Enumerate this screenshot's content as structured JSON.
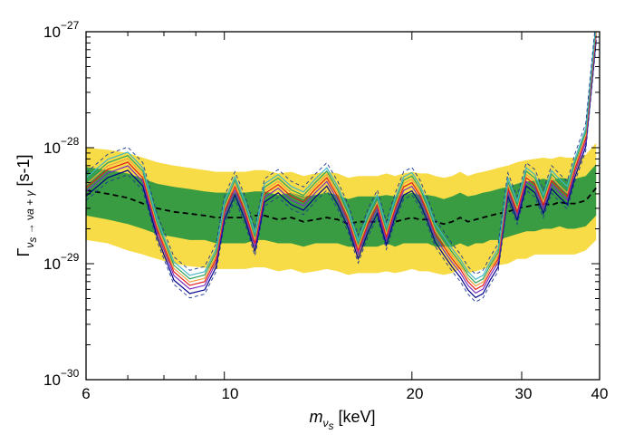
{
  "chart_data": {
    "type": "line",
    "xscale": "log",
    "yscale": "log",
    "xlim": [
      6,
      40
    ],
    "ylim": [
      1e-30,
      1e-27
    ],
    "grid": false,
    "legend": "none",
    "xlabel": {
      "main": "m",
      "sub": "ν",
      "subsub": "s",
      "unit": " [keV]"
    },
    "ylabel": {
      "main": "Γ",
      "sub": "ν",
      "subsub": "s",
      "mid": " → ν",
      "sub2": "a",
      "tail": " + γ",
      "unit": " [s-1]"
    },
    "x_ticks": [
      {
        "value": 6,
        "label": "6"
      },
      {
        "value": 10,
        "label": "10"
      },
      {
        "value": 20,
        "label": "20"
      },
      {
        "value": 30,
        "label": "30"
      },
      {
        "value": 40,
        "label": "40"
      }
    ],
    "y_ticks": [
      {
        "value": 1e-30,
        "base": "10",
        "exp": "−30"
      },
      {
        "value": 1e-29,
        "base": "10",
        "exp": "−29"
      },
      {
        "value": 1e-28,
        "base": "10",
        "exp": "−28"
      },
      {
        "value": 1e-27,
        "base": "10",
        "exp": "−27"
      }
    ],
    "x": [
      6.0,
      6.5,
      7.0,
      7.4,
      7.8,
      8.3,
      8.8,
      9.3,
      9.7,
      10.0,
      10.4,
      10.8,
      11.2,
      11.6,
      12.2,
      12.8,
      13.4,
      14.0,
      14.6,
      15.2,
      15.8,
      16.4,
      17.0,
      17.6,
      18.2,
      18.8,
      19.4,
      20.0,
      20.6,
      21.2,
      21.8,
      22.5,
      23.2,
      23.9,
      24.6,
      25.3,
      26.0,
      26.7,
      27.5,
      28.5,
      29.5,
      30.5,
      31.5,
      32.5,
      33.5,
      34.5,
      35.5,
      36.5,
      38.0,
      39.5
    ],
    "expected_median": [
      4.3e-29,
      4e-29,
      3.7e-29,
      3.3e-29,
      3e-29,
      2.8e-29,
      2.7e-29,
      2.6e-29,
      2.5e-29,
      2.5e-29,
      2.5e-29,
      2.5e-29,
      2.6e-29,
      2.6e-29,
      2.4e-29,
      2.5e-29,
      2.3e-29,
      2.4e-29,
      2.5e-29,
      2.4e-29,
      2.2e-29,
      2.3e-29,
      2.3e-29,
      2.3e-29,
      2.4e-29,
      2.3e-29,
      2.4e-29,
      2.5e-29,
      2.4e-29,
      2.4e-29,
      2.3e-29,
      2.2e-29,
      2.3e-29,
      2.5e-29,
      2.3e-29,
      2.4e-29,
      2.5e-29,
      2.6e-29,
      2.7e-29,
      2.8e-29,
      3e-29,
      3.1e-29,
      3.2e-29,
      3.3e-29,
      3.2e-29,
      3.4e-29,
      3.3e-29,
      3.3e-29,
      3.5e-29,
      4.5e-29
    ],
    "band_1sigma_low": [
      2.6e-29,
      2.4e-29,
      2.2e-29,
      2e-29,
      1.8e-29,
      1.7e-29,
      1.6e-29,
      1.6e-29,
      1.5e-29,
      1.5e-29,
      1.5e-29,
      1.5e-29,
      1.6e-29,
      1.6e-29,
      1.5e-29,
      1.5e-29,
      1.4e-29,
      1.5e-29,
      1.5e-29,
      1.5e-29,
      1.4e-29,
      1.4e-29,
      1.4e-29,
      1.4e-29,
      1.5e-29,
      1.4e-29,
      1.5e-29,
      1.5e-29,
      1.5e-29,
      1.5e-29,
      1.4e-29,
      1.4e-29,
      1.4e-29,
      1.5e-29,
      1.4e-29,
      1.5e-29,
      1.5e-29,
      1.6e-29,
      1.6e-29,
      1.7e-29,
      1.8e-29,
      1.9e-29,
      1.9e-29,
      2e-29,
      2e-29,
      2.1e-29,
      2e-29,
      2e-29,
      2.1e-29,
      2.6e-29
    ],
    "band_1sigma_high": [
      6.8e-29,
      6.4e-29,
      6e-29,
      5.4e-29,
      4.9e-29,
      4.6e-29,
      4.4e-29,
      4.2e-29,
      4.1e-29,
      4.1e-29,
      4.1e-29,
      4.1e-29,
      4.2e-29,
      4.2e-29,
      3.9e-29,
      4.1e-29,
      3.8e-29,
      3.9e-29,
      4.1e-29,
      3.9e-29,
      3.6e-29,
      3.8e-29,
      3.8e-29,
      3.8e-29,
      3.9e-29,
      3.8e-29,
      3.9e-29,
      4.1e-29,
      3.9e-29,
      3.9e-29,
      3.8e-29,
      3.6e-29,
      3.8e-29,
      4.1e-29,
      3.8e-29,
      3.9e-29,
      4.1e-29,
      4.2e-29,
      4.4e-29,
      4.6e-29,
      4.9e-29,
      5.1e-29,
      5.2e-29,
      5.4e-29,
      5.2e-29,
      5.5e-29,
      5.4e-29,
      5.4e-29,
      5.7e-29,
      7.2e-29
    ],
    "band_2sigma_low": [
      1.6e-29,
      1.5e-29,
      1.3e-29,
      1.2e-29,
      1.1e-29,
      1e-29,
      9.5e-30,
      9.2e-30,
      9e-30,
      9e-30,
      9e-30,
      9e-30,
      9.3e-30,
      9.3e-30,
      8.6e-30,
      9e-30,
      8.3e-30,
      8.6e-30,
      9e-30,
      8.6e-30,
      8e-30,
      8.3e-30,
      8.3e-30,
      8.3e-30,
      8.6e-30,
      8.3e-30,
      8.6e-30,
      9e-30,
      8.6e-30,
      8.6e-30,
      8.3e-30,
      8e-30,
      8.3e-30,
      9e-30,
      8.3e-30,
      8.6e-30,
      9e-30,
      9.3e-30,
      9.7e-30,
      1e-29,
      1.1e-29,
      1.1e-29,
      1.2e-29,
      1.2e-29,
      1.2e-29,
      1.2e-29,
      1.2e-29,
      1.2e-29,
      1.3e-29,
      1.6e-29
    ],
    "band_2sigma_high": [
      1e-28,
      9.6e-29,
      9e-29,
      8.2e-29,
      7.5e-29,
      7e-29,
      6.7e-29,
      6.4e-29,
      6.2e-29,
      6.2e-29,
      6.2e-29,
      6.2e-29,
      6.4e-29,
      6.4e-29,
      6e-29,
      6.2e-29,
      5.7e-29,
      6e-29,
      6.2e-29,
      6e-29,
      5.5e-29,
      5.7e-29,
      5.7e-29,
      5.7e-29,
      6e-29,
      5.7e-29,
      6e-29,
      6.2e-29,
      6e-29,
      6e-29,
      5.7e-29,
      5.5e-29,
      5.7e-29,
      6.2e-29,
      5.7e-29,
      6e-29,
      6.2e-29,
      6.4e-29,
      6.7e-29,
      7e-29,
      7.5e-29,
      7.8e-29,
      8e-29,
      8.2e-29,
      8e-29,
      8.4e-29,
      8.2e-29,
      8.2e-29,
      8.7e-29,
      1.1e-28
    ],
    "observed_limit": [
      4.5e-29,
      6.5e-29,
      7.5e-29,
      5.5e-29,
      2e-29,
      8.5e-30,
      6.5e-30,
      7e-30,
      1.1e-29,
      2.8e-29,
      4.6e-29,
      2.8e-29,
      1.5e-29,
      4e-29,
      4.8e-29,
      3.8e-29,
      3.4e-29,
      4.4e-29,
      5.5e-29,
      3.8e-29,
      2.4e-29,
      1.3e-29,
      2.2e-29,
      3.2e-29,
      1.7e-29,
      3e-29,
      4.6e-29,
      5e-29,
      3.9e-29,
      2.7e-29,
      1.8e-29,
      1.4e-29,
      1.1e-29,
      9e-30,
      7e-30,
      6e-30,
      6.5e-30,
      8.5e-30,
      1.1e-29,
      4.5e-29,
      2.8e-29,
      5.5e-29,
      4.8e-29,
      3.2e-29,
      5.2e-29,
      4.4e-29,
      3.8e-29,
      6.5e-29,
      1.2e-28,
      1e-27
    ],
    "series": [
      {
        "name": "",
        "color": "#00008b",
        "dash": "",
        "factor": 0.85
      },
      {
        "name": "",
        "color": "#7b2cbf",
        "dash": "",
        "factor": 0.93
      },
      {
        "name": "",
        "color": "#e41a1c",
        "dash": "",
        "factor": 1.0
      },
      {
        "name": "",
        "color": "#f1a340",
        "dash": "",
        "factor": 1.07
      },
      {
        "name": "",
        "color": "#2ca25f",
        "dash": "",
        "factor": 1.14
      },
      {
        "name": "",
        "color": "#41b6c4",
        "dash": "",
        "factor": 1.22
      },
      {
        "name": "",
        "color": "#1f3a93",
        "dash": "4,3",
        "factor": 1.35
      },
      {
        "name": "",
        "color": "#1f3a93",
        "dash": "4,3",
        "factor": 0.78
      }
    ],
    "colors": {
      "band_2sigma": "#f7dc47",
      "band_1sigma": "#3a9c42",
      "median": "#000000"
    }
  }
}
